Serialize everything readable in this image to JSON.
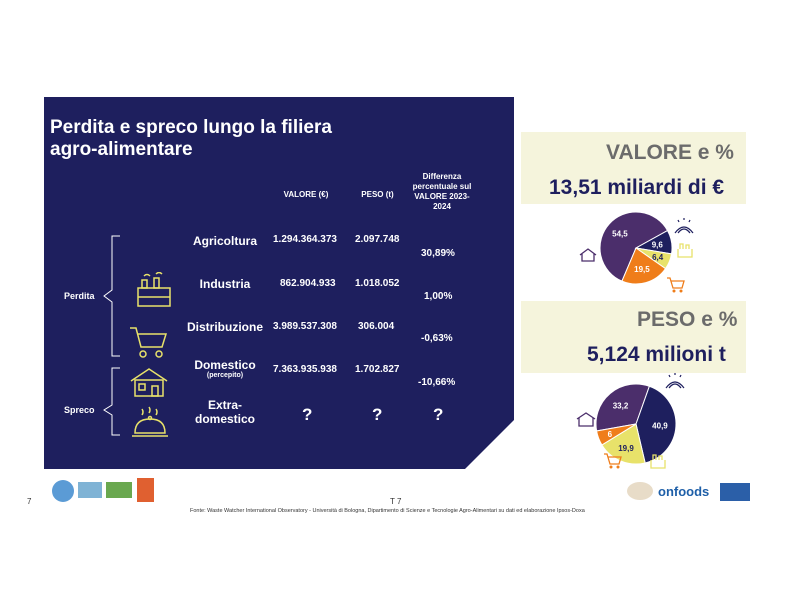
{
  "slide": {
    "title": "Perdita e spreco lungo la filiera agro-alimentare",
    "headers": {
      "valore": "VALORE (€)",
      "peso": "PESO (t)",
      "diff": "Differenza percentuale sul VALORE 2023-2024"
    },
    "groups": {
      "perdita": "Perdita",
      "spreco": "Spreco"
    },
    "rows": [
      {
        "label": "Agricoltura",
        "valore": "1.294.364.373",
        "peso": "2.097.748",
        "diff": "30,89%"
      },
      {
        "label": "Industria",
        "valore": "862.904.933",
        "peso": "1.018.052",
        "diff": "1,00%"
      },
      {
        "label": "Distribuzione",
        "valore": "3.989.537.308",
        "peso": "306.004",
        "diff": "-0,63%"
      },
      {
        "label": "Domestico",
        "sublabel": "(percepito)",
        "valore": "7.363.935.938",
        "peso": "1.702.827",
        "diff": "-10,66%"
      },
      {
        "label": "Extra-domestico",
        "valore": "?",
        "peso": "?",
        "diff": "?"
      }
    ]
  },
  "valore_box": {
    "title": "VALORE e %",
    "value": "13,51 miliardi di €"
  },
  "peso_box": {
    "title": "PESO e %",
    "value": "5,124 milioni t"
  },
  "chart_data": [
    {
      "type": "pie",
      "title": "VALORE e %",
      "values": [
        54.5,
        9.6,
        6.4,
        19.5
      ],
      "labels": [
        "54,5",
        "9,6",
        "6,4",
        "19,5"
      ],
      "colors": [
        "#4b2e6b",
        "#1e1f5e",
        "#e8e26a",
        "#ef7d1a"
      ]
    },
    {
      "type": "pie",
      "title": "PESO e %",
      "values": [
        33.2,
        40.9,
        19.9,
        6.0
      ],
      "labels": [
        "33,2",
        "40,9",
        "19,9",
        "6"
      ],
      "colors": [
        "#4b2e6b",
        "#1e1f5e",
        "#e8e26a",
        "#ef7d1a"
      ]
    }
  ],
  "footer": {
    "source": "Fonte: Waste Watcher International Observatory - Università di Bologna, Dipartimento di Scienze e Tecnologie Agro-Alimentari su dati ed elaborazione Ipsos-Doxa",
    "page_left": "7",
    "page_center": "T 7",
    "logo_text": "onfoods"
  },
  "colors": {
    "navy": "#1e1f5e",
    "purple": "#4b2e6b",
    "orange": "#ef7d1a",
    "yellow": "#e8e26a",
    "cream": "#f5f4dc"
  }
}
